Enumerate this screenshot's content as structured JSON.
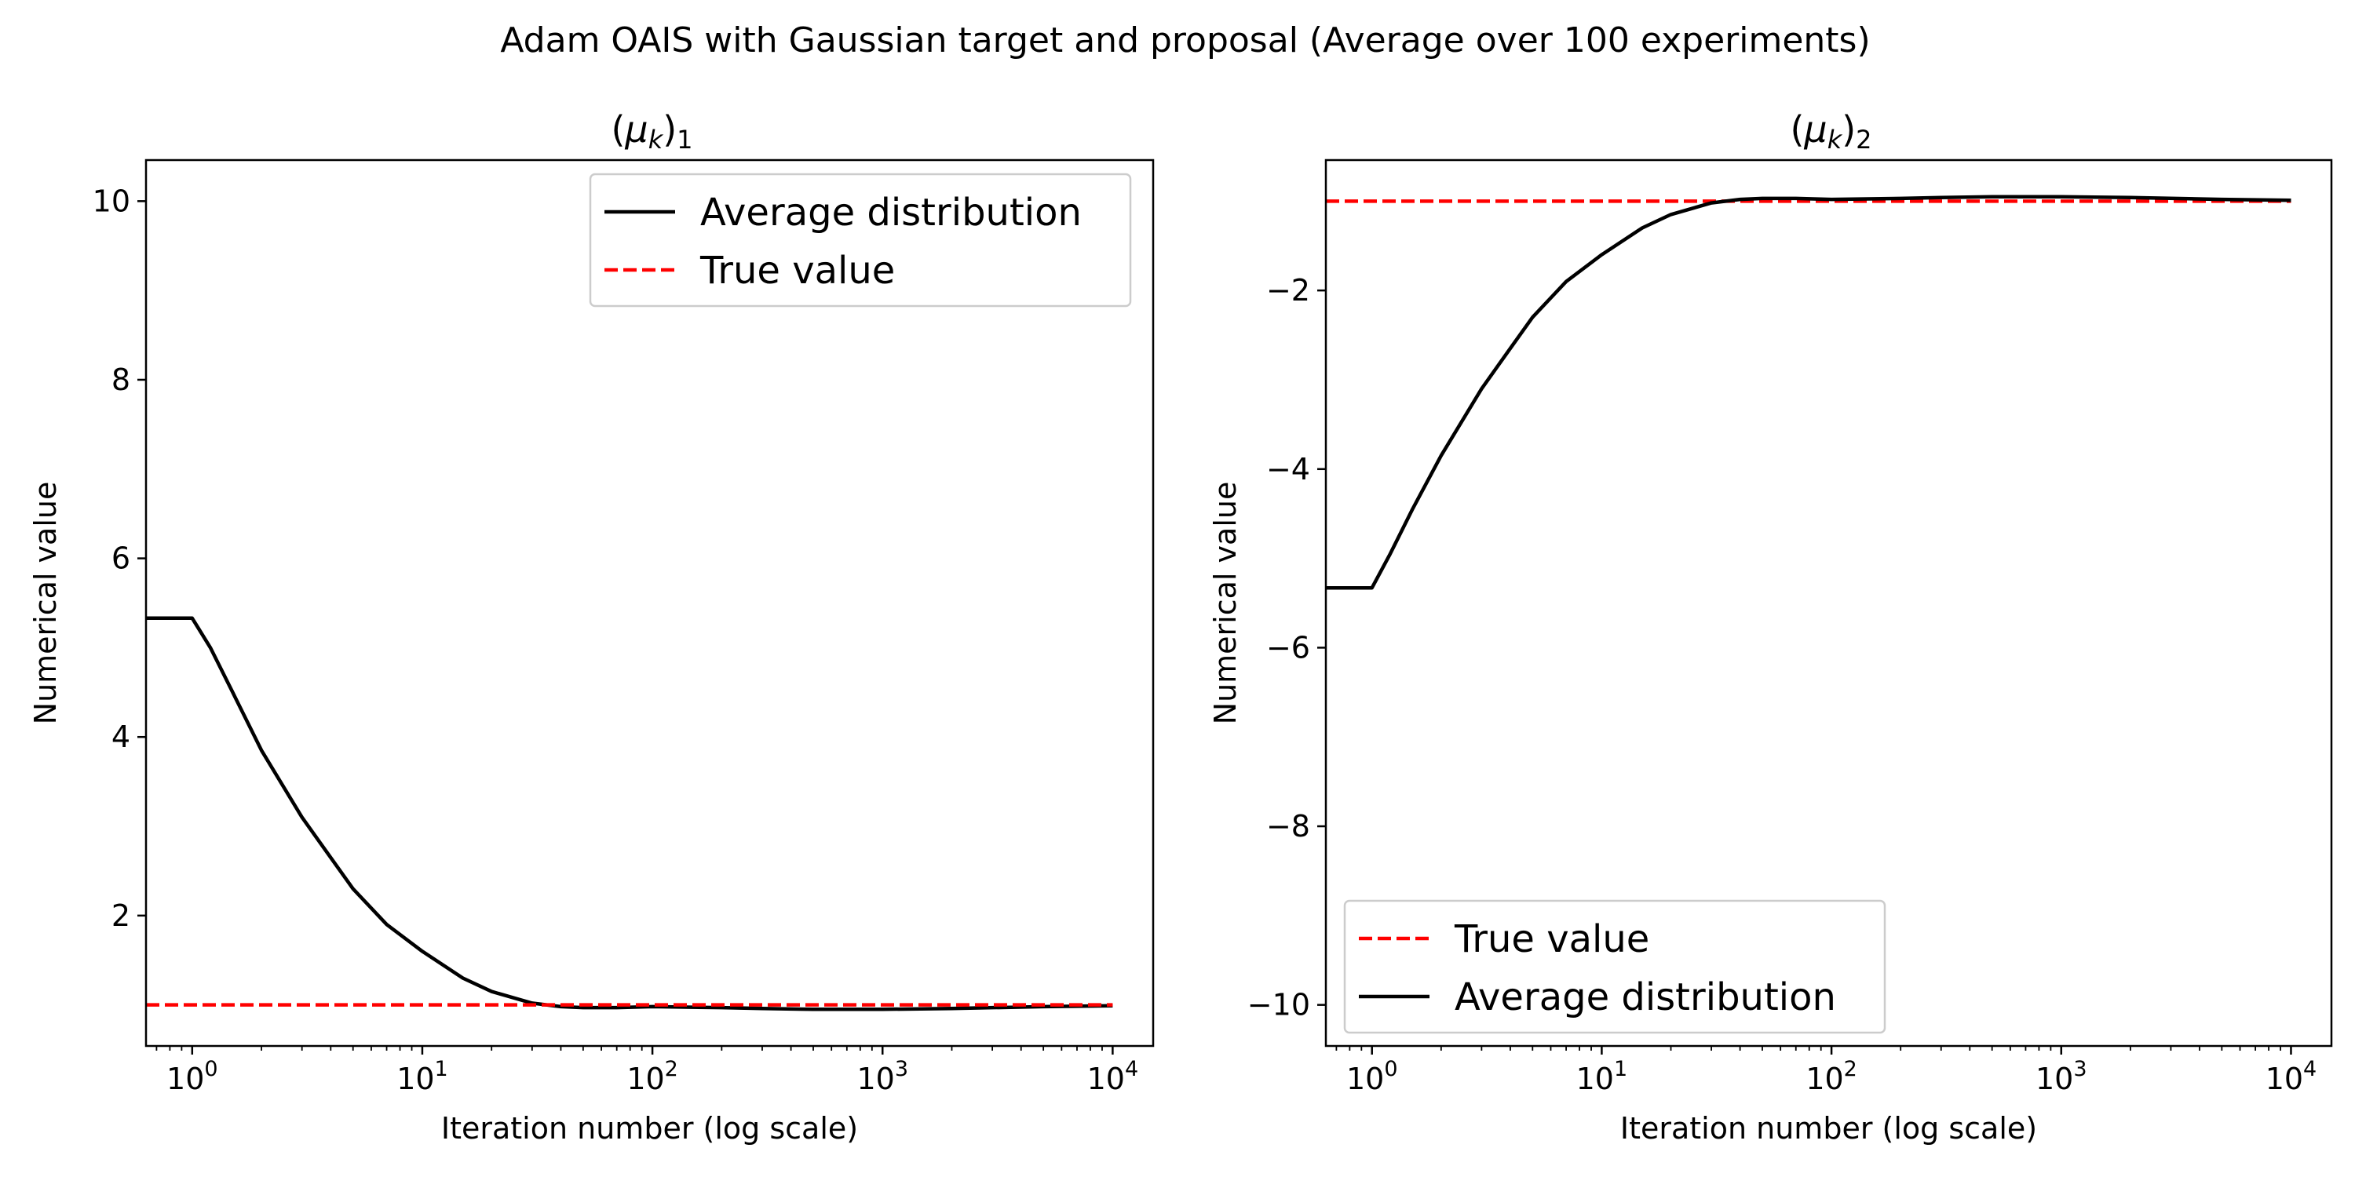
{
  "figure": {
    "suptitle": "Adam OAIS with Gaussian target and proposal (Average over 100 experiments)"
  },
  "chart_data": [
    {
      "type": "line",
      "title": "(μk)1",
      "title_main": "(μ",
      "title_k": "k",
      "title_close": ")",
      "title_index": "1",
      "xlabel": "Iteration number (log scale)",
      "ylabel": "Numerical value",
      "xscale": "log",
      "xlim": [
        0.63,
        15000
      ],
      "ylim": [
        0.54,
        10.46
      ],
      "xtick_labels": [
        {
          "value": 1,
          "base": "10",
          "exp": "0"
        },
        {
          "value": 10,
          "base": "10",
          "exp": "1"
        },
        {
          "value": 100,
          "base": "10",
          "exp": "2"
        },
        {
          "value": 1000,
          "base": "10",
          "exp": "3"
        },
        {
          "value": 10000,
          "base": "10",
          "exp": "4"
        }
      ],
      "yticks": [
        2,
        4,
        6,
        8,
        10
      ],
      "ytick_labels": [
        "2",
        "4",
        "6",
        "8",
        "10"
      ],
      "legend_loc": "upper right",
      "grid": false,
      "series": [
        {
          "name": "Average distribution",
          "color": "#000000",
          "style": "solid",
          "x": [
            0.63,
            1,
            1.2,
            1.5,
            2,
            3,
            4,
            5,
            7,
            10,
            15,
            20,
            30,
            40,
            50,
            70,
            100,
            200,
            300,
            500,
            700,
            1000,
            2000,
            5000,
            10000
          ],
          "y": [
            5.33,
            5.33,
            5.0,
            4.5,
            3.85,
            3.1,
            2.65,
            2.3,
            1.9,
            1.6,
            1.3,
            1.15,
            1.02,
            0.98,
            0.97,
            0.97,
            0.98,
            0.97,
            0.96,
            0.95,
            0.95,
            0.95,
            0.96,
            0.98,
            0.99
          ]
        },
        {
          "name": "True value",
          "color": "#ff0000",
          "style": "dashed",
          "x": [
            0.63,
            10000
          ],
          "y": [
            1.0,
            1.0
          ]
        }
      ]
    },
    {
      "type": "line",
      "title": "(μk)2",
      "title_main": "(μ",
      "title_k": "k",
      "title_close": ")",
      "title_index": "2",
      "xlabel": "Iteration number (log scale)",
      "ylabel": "Numerical value",
      "xscale": "log",
      "xlim": [
        0.63,
        15000
      ],
      "ylim": [
        -10.46,
        -0.54
      ],
      "xtick_labels": [
        {
          "value": 1,
          "base": "10",
          "exp": "0"
        },
        {
          "value": 10,
          "base": "10",
          "exp": "1"
        },
        {
          "value": 100,
          "base": "10",
          "exp": "2"
        },
        {
          "value": 1000,
          "base": "10",
          "exp": "3"
        },
        {
          "value": 10000,
          "base": "10",
          "exp": "4"
        }
      ],
      "yticks": [
        -2,
        -4,
        -6,
        -8,
        -10
      ],
      "ytick_labels": [
        "−2",
        "−4",
        "−6",
        "−8",
        "−10"
      ],
      "legend_loc": "lower left",
      "grid": false,
      "series": [
        {
          "name": "True value",
          "color": "#ff0000",
          "style": "dashed",
          "x": [
            0.63,
            10000
          ],
          "y": [
            -1.0,
            -1.0
          ]
        },
        {
          "name": "Average distribution",
          "color": "#000000",
          "style": "solid",
          "x": [
            0.63,
            1,
            1.2,
            1.5,
            2,
            3,
            4,
            5,
            7,
            10,
            15,
            20,
            30,
            40,
            50,
            70,
            100,
            200,
            300,
            500,
            700,
            1000,
            2000,
            5000,
            10000
          ],
          "y": [
            -5.33,
            -5.33,
            -4.95,
            -4.45,
            -3.85,
            -3.1,
            -2.65,
            -2.3,
            -1.9,
            -1.6,
            -1.3,
            -1.15,
            -1.02,
            -0.98,
            -0.97,
            -0.97,
            -0.98,
            -0.97,
            -0.96,
            -0.95,
            -0.95,
            -0.95,
            -0.96,
            -0.98,
            -0.99
          ]
        }
      ]
    }
  ]
}
